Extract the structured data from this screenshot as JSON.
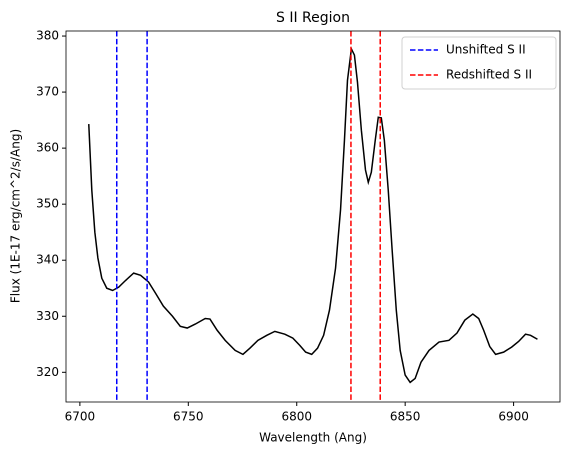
{
  "chart_data": {
    "type": "line",
    "title": "S II Region",
    "xlabel": "Wavelength (Ang)",
    "ylabel": "Flux (1E-17 erg/cm^2/s/Ang)",
    "x": [
      6704.1,
      6705.5,
      6706.9,
      6708.3,
      6710.1,
      6712.4,
      6715.1,
      6717.9,
      6721.1,
      6724.8,
      6728,
      6731.7,
      6734.9,
      6738.5,
      6742.7,
      6746.3,
      6749.5,
      6753.2,
      6757.8,
      6760,
      6763.3,
      6767,
      6771.6,
      6775.2,
      6778.4,
      6782.1,
      6786.2,
      6789.9,
      6794.5,
      6798.2,
      6801.4,
      6804.1,
      6806.9,
      6809.6,
      6812.4,
      6815.1,
      6817.9,
      6820.2,
      6822,
      6823.4,
      6825.2,
      6826.6,
      6828,
      6829.8,
      6831.7,
      6833,
      6834.4,
      6836.2,
      6837.6,
      6839,
      6840.4,
      6842.2,
      6844,
      6845.9,
      6847.7,
      6850,
      6852.3,
      6854.6,
      6857.3,
      6861,
      6865.6,
      6870.2,
      6873.9,
      6877.5,
      6881.2,
      6883.9,
      6886.2,
      6889,
      6891.7,
      6895.4,
      6899.1,
      6902.3,
      6905.5,
      6907.8,
      6911
    ],
    "series": [
      {
        "color": "#000000",
        "values": [
          364.3,
          352.5,
          345,
          340.4,
          336.8,
          335,
          334.6,
          335.2,
          336.4,
          337.7,
          337.3,
          336.1,
          334.1,
          331.8,
          330,
          328.2,
          327.9,
          328.6,
          329.6,
          329.5,
          327.5,
          325.7,
          323.9,
          323.2,
          324.3,
          325.7,
          326.6,
          327.3,
          326.8,
          326.1,
          324.8,
          323.6,
          323.2,
          324.3,
          326.6,
          331.1,
          338.6,
          349,
          361.4,
          372.1,
          377.7,
          376.6,
          371.8,
          363.2,
          356.1,
          353.9,
          355.7,
          361.4,
          365.5,
          365.4,
          361.4,
          352.5,
          341.8,
          331.1,
          323.9,
          319.5,
          318.2,
          318.9,
          321.8,
          323.9,
          325.4,
          325.7,
          327,
          329.3,
          330.4,
          329.6,
          327.5,
          324.6,
          323.2,
          323.6,
          324.5,
          325.5,
          326.8,
          326.6,
          325.9
        ]
      }
    ],
    "vlines": [
      {
        "name": "Unshifted S II",
        "color": "#0000ff",
        "values": [
          6717,
          6731
        ]
      },
      {
        "name": "Redshifted S II",
        "color": "#ff0000",
        "values": [
          6825,
          6838.5
        ]
      }
    ],
    "xlim": [
      6693.6,
      6921.4
    ],
    "xticks": [
      6700,
      6750,
      6800,
      6850,
      6900
    ],
    "ylim": [
      314.7,
      380.9
    ],
    "yticks": [
      320,
      330,
      340,
      350,
      360,
      370,
      380
    ],
    "legend": "upper right",
    "grid": false
  }
}
